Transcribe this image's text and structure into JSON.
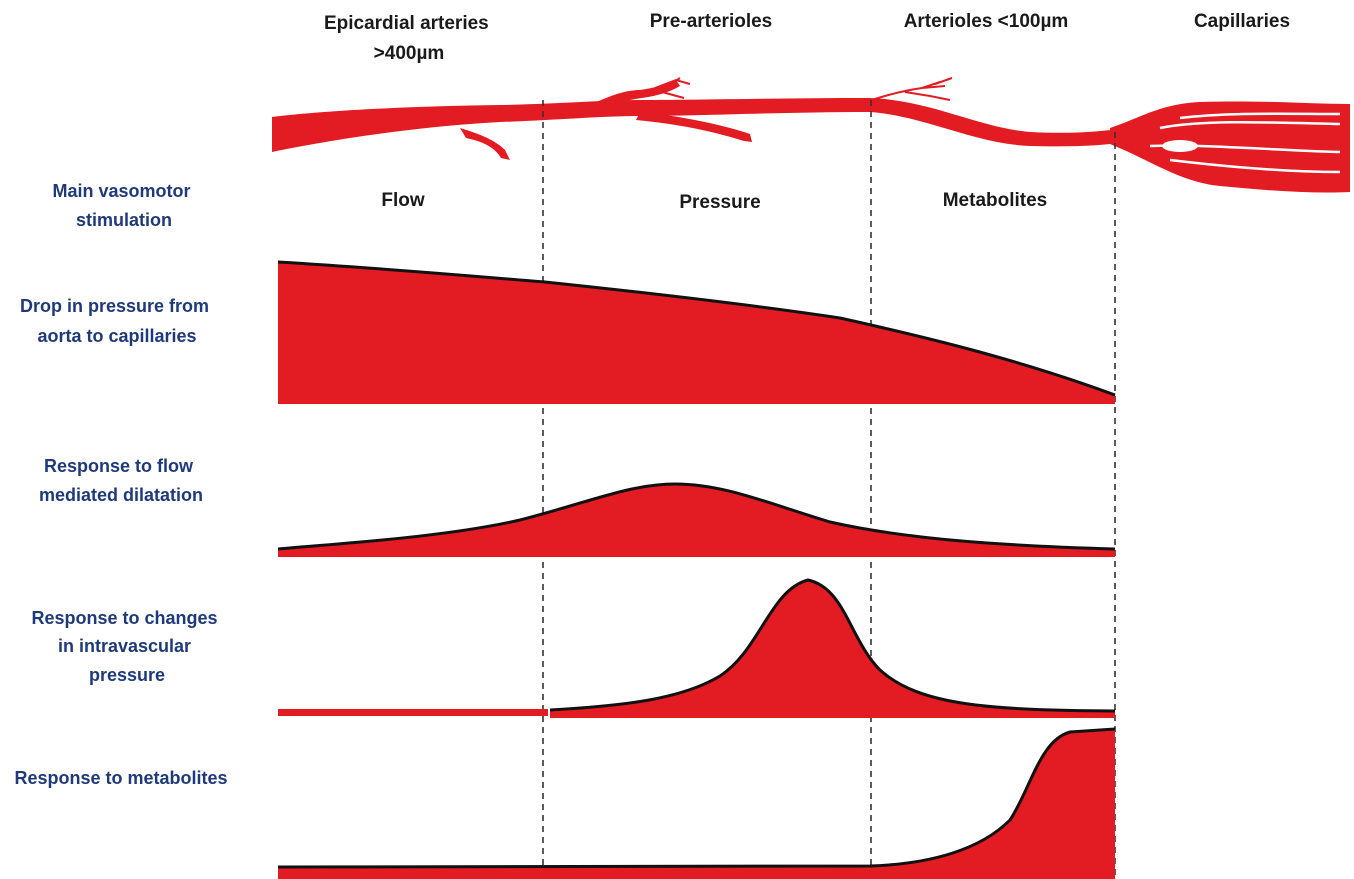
{
  "segments": [
    {
      "title_lines": [
        "Epicardial arteries",
        ">400µm"
      ]
    },
    {
      "title_lines": [
        "Pre-arterioles"
      ]
    },
    {
      "title_lines": [
        "Arterioles <100µm"
      ]
    },
    {
      "title_lines": [
        "Capillaries"
      ]
    }
  ],
  "stimulation": {
    "label_lines": [
      "Main vasomotor",
      "stimulation"
    ],
    "values": [
      "Flow",
      "Pressure",
      "Metabolites"
    ]
  },
  "rows": [
    {
      "id": "pressure-drop",
      "label_lines": [
        "Drop in pressure from",
        "aorta to capillaries"
      ]
    },
    {
      "id": "flow-response",
      "label_lines": [
        "Response to flow",
        "mediated dilatation"
      ]
    },
    {
      "id": "pressure-response",
      "label_lines": [
        "Response to changes",
        "in intravascular",
        "pressure"
      ]
    },
    {
      "id": "metabolite-response",
      "label_lines": [
        "Response to metabolites"
      ]
    }
  ],
  "colors": {
    "vessel": "#e31b23",
    "curve_fill": "#e31b23",
    "curve_edge": "#111111",
    "row_label": "#1f3a7a",
    "title_text": "#1a1a1a",
    "divider": "#333333"
  }
}
